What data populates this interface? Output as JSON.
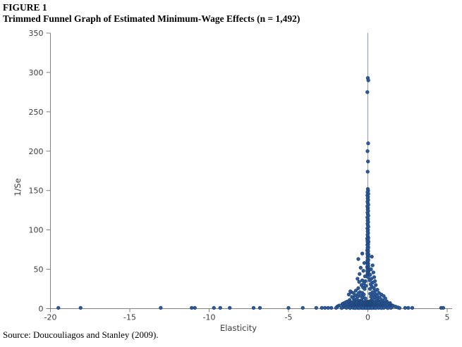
{
  "title": {
    "figure_label": "FIGURE 1",
    "text": "Trimmed Funnel Graph of Estimated Minimum-Wage Effects (n = 1,492)"
  },
  "source": "Source: Doucouliagos and Stanley (2009).",
  "chart_data": {
    "type": "scatter",
    "title": "Trimmed Funnel Graph of Estimated Minimum-Wage Effects (n = 1,492)",
    "n": 1492,
    "xlabel": "Elasticity",
    "ylabel": "1/Se",
    "xlim": [
      -20,
      5
    ],
    "ylim": [
      0,
      350
    ],
    "xticks": [
      -20,
      -15,
      -10,
      -5,
      0,
      5
    ],
    "yticks": [
      0,
      50,
      100,
      150,
      200,
      250,
      300,
      350
    ],
    "grid": false,
    "legend": false,
    "axis_color": "#808080",
    "label_color": "#3b3b3b",
    "reference_line": {
      "x": 0,
      "from": 0,
      "to": 350,
      "color": "#9aa3ad"
    },
    "marker": {
      "shape": "circle",
      "fill": "#2d5a9d",
      "edge": "#1d4273",
      "radius": 2.3
    },
    "points": [
      [
        0,
        293
      ],
      [
        0.03,
        290
      ],
      [
        -0.03,
        275
      ],
      [
        0.02,
        210
      ],
      [
        -0.02,
        200
      ],
      [
        0.01,
        187
      ],
      [
        -0.01,
        174
      ],
      [
        0,
        152
      ],
      [
        0.02,
        150
      ],
      [
        -0.02,
        148
      ],
      [
        0.03,
        146
      ],
      [
        -0.03,
        144
      ],
      [
        0.01,
        142
      ],
      [
        -0.01,
        140
      ],
      [
        0.02,
        138
      ],
      [
        -0.02,
        136
      ],
      [
        0,
        134
      ],
      [
        0.03,
        132
      ],
      [
        -0.03,
        130
      ],
      [
        0.01,
        128
      ],
      [
        -0.01,
        126
      ],
      [
        0.02,
        124
      ],
      [
        -0.02,
        122
      ],
      [
        0,
        120
      ],
      [
        0.03,
        118
      ],
      [
        -0.03,
        116
      ],
      [
        0.01,
        114
      ],
      [
        -0.01,
        112
      ],
      [
        0.02,
        110
      ],
      [
        -0.02,
        108
      ],
      [
        0,
        106
      ],
      [
        0.03,
        104
      ],
      [
        -0.03,
        102
      ],
      [
        0.01,
        100
      ],
      [
        -0.01,
        98
      ],
      [
        0.02,
        96
      ],
      [
        -0.02,
        94
      ],
      [
        0,
        92
      ],
      [
        0.03,
        90
      ],
      [
        -0.04,
        89
      ],
      [
        0.01,
        88
      ],
      [
        -0.02,
        86
      ],
      [
        0.04,
        85
      ],
      [
        -0.01,
        84
      ],
      [
        0.02,
        82
      ],
      [
        -0.03,
        81
      ],
      [
        0,
        80
      ],
      [
        0.03,
        78
      ],
      [
        -0.02,
        77
      ],
      [
        0.01,
        76
      ],
      [
        -0.04,
        74
      ],
      [
        0.02,
        73
      ],
      [
        0,
        72
      ],
      [
        -0.03,
        70
      ],
      [
        0.04,
        69
      ],
      [
        -0.01,
        68
      ],
      [
        0.02,
        66
      ],
      [
        -0.02,
        65
      ],
      [
        0,
        64
      ],
      [
        0.03,
        62
      ],
      [
        -0.03,
        61
      ],
      [
        0.01,
        60
      ],
      [
        -0.02,
        58
      ],
      [
        0.02,
        57
      ],
      [
        0,
        56
      ],
      [
        -0.01,
        55
      ],
      [
        0.03,
        54
      ],
      [
        -0.04,
        53
      ],
      [
        0.01,
        52
      ],
      [
        -0.02,
        51
      ],
      [
        0.02,
        50
      ],
      [
        0,
        49
      ],
      [
        -0.03,
        48
      ],
      [
        0.04,
        47
      ],
      [
        -0.01,
        46
      ],
      [
        0.02,
        45
      ],
      [
        -0.02,
        44
      ],
      [
        0,
        43
      ],
      [
        0.03,
        42
      ],
      [
        -0.03,
        41
      ],
      [
        0.01,
        40
      ],
      [
        -0.6,
        63
      ],
      [
        -0.35,
        70
      ],
      [
        0.25,
        66
      ],
      [
        -0.22,
        58
      ],
      [
        0.3,
        55
      ],
      [
        -0.45,
        52
      ],
      [
        0.2,
        50
      ],
      [
        -0.28,
        48
      ],
      [
        0.35,
        46
      ],
      [
        -0.52,
        44
      ],
      [
        0.15,
        43
      ],
      [
        -0.18,
        41
      ],
      [
        0.4,
        40
      ],
      [
        -0.65,
        38
      ],
      [
        0.22,
        38
      ],
      [
        -0.35,
        36
      ],
      [
        0.12,
        36
      ],
      [
        -0.15,
        35
      ],
      [
        0.45,
        35
      ],
      [
        -0.55,
        34
      ],
      [
        0.3,
        33
      ],
      [
        -0.25,
        32
      ],
      [
        0.18,
        31
      ],
      [
        -0.4,
        30
      ],
      [
        0.5,
        30
      ],
      [
        -0.12,
        29
      ],
      [
        0.25,
        28
      ],
      [
        -0.3,
        27
      ],
      [
        0.38,
        26
      ],
      [
        -0.6,
        26
      ],
      [
        0.14,
        25
      ],
      [
        -0.2,
        25
      ],
      [
        -1.05,
        21
      ],
      [
        -1.1,
        22
      ],
      [
        0.6,
        24
      ],
      [
        -0.75,
        23
      ],
      [
        0.45,
        22
      ],
      [
        -0.5,
        21
      ],
      [
        0.3,
        21
      ],
      [
        -0.9,
        20
      ],
      [
        0.7,
        20
      ],
      [
        -0.35,
        20
      ],
      [
        0.15,
        19
      ],
      [
        -0.6,
        19
      ],
      [
        0.5,
        18
      ],
      [
        -1.2,
        18
      ],
      [
        0.85,
        18
      ],
      [
        -0.25,
        18
      ],
      [
        0.35,
        17
      ],
      [
        -0.8,
        17
      ],
      [
        0.6,
        16
      ],
      [
        -0.45,
        16
      ],
      [
        1,
        16
      ],
      [
        -1,
        15
      ],
      [
        0.2,
        15
      ],
      [
        -0.65,
        15
      ],
      [
        0.75,
        14
      ],
      [
        -0.3,
        14
      ],
      [
        0.45,
        14
      ],
      [
        -0.9,
        13
      ],
      [
        1.1,
        13
      ],
      [
        -0.15,
        13
      ],
      [
        0.55,
        12
      ],
      [
        -0.7,
        12
      ],
      [
        0.3,
        12
      ],
      [
        -1.15,
        11
      ],
      [
        0.9,
        11
      ],
      [
        -0.4,
        11
      ],
      [
        0.65,
        10
      ],
      [
        -0.55,
        10
      ],
      [
        0.18,
        10
      ],
      [
        -0.85,
        10
      ],
      [
        -1.3,
        9
      ],
      [
        -0.9,
        9
      ],
      [
        -0.6,
        9
      ],
      [
        -0.35,
        9
      ],
      [
        -0.15,
        9
      ],
      [
        0,
        9
      ],
      [
        0.2,
        9
      ],
      [
        0.5,
        9
      ],
      [
        0.8,
        9
      ],
      [
        1.2,
        9
      ],
      [
        -1.1,
        8.5
      ],
      [
        -0.75,
        8.5
      ],
      [
        -0.5,
        8.5
      ],
      [
        -0.25,
        8.5
      ],
      [
        -0.05,
        8.5
      ],
      [
        0.12,
        8.5
      ],
      [
        0.35,
        8.5
      ],
      [
        0.65,
        8.5
      ],
      [
        1,
        8.5
      ],
      [
        -1.4,
        8
      ],
      [
        -1,
        8
      ],
      [
        -0.7,
        8
      ],
      [
        -0.45,
        8
      ],
      [
        -0.2,
        8
      ],
      [
        0,
        8
      ],
      [
        0.18,
        8
      ],
      [
        0.4,
        8
      ],
      [
        0.7,
        8
      ],
      [
        1.1,
        8
      ],
      [
        -1.2,
        7.5
      ],
      [
        -0.85,
        7.5
      ],
      [
        -0.55,
        7.5
      ],
      [
        -0.3,
        7.5
      ],
      [
        -0.1,
        7.5
      ],
      [
        0.08,
        7.5
      ],
      [
        0.28,
        7.5
      ],
      [
        0.55,
        7.5
      ],
      [
        0.9,
        7.5
      ],
      [
        -1.5,
        7
      ],
      [
        -1.05,
        7
      ],
      [
        -0.75,
        7
      ],
      [
        -0.5,
        7
      ],
      [
        -0.25,
        7
      ],
      [
        -0.05,
        7
      ],
      [
        0.15,
        7
      ],
      [
        0.38,
        7
      ],
      [
        0.68,
        7
      ],
      [
        1.05,
        7
      ],
      [
        1.4,
        7
      ],
      [
        -1.25,
        6.5
      ],
      [
        -0.9,
        6.5
      ],
      [
        -0.6,
        6.5
      ],
      [
        -0.35,
        6.5
      ],
      [
        -0.12,
        6.5
      ],
      [
        0.05,
        6.5
      ],
      [
        0.25,
        6.5
      ],
      [
        0.5,
        6.5
      ],
      [
        0.85,
        6.5
      ],
      [
        1.25,
        6.5
      ],
      [
        -1.6,
        6
      ],
      [
        -1.1,
        6
      ],
      [
        -0.8,
        6
      ],
      [
        -0.52,
        6
      ],
      [
        -0.28,
        6
      ],
      [
        -0.08,
        6
      ],
      [
        0.1,
        6
      ],
      [
        0.3,
        6
      ],
      [
        0.58,
        6
      ],
      [
        0.95,
        6
      ],
      [
        1.35,
        6
      ],
      [
        -1.35,
        5.5
      ],
      [
        -0.95,
        5.5
      ],
      [
        -0.65,
        5.5
      ],
      [
        -0.4,
        5.5
      ],
      [
        -0.18,
        5.5
      ],
      [
        0,
        5.5
      ],
      [
        0.2,
        5.5
      ],
      [
        0.42,
        5.5
      ],
      [
        0.75,
        5.5
      ],
      [
        1.15,
        5.5
      ],
      [
        -1.55,
        5
      ],
      [
        -1.15,
        5
      ],
      [
        -0.82,
        5
      ],
      [
        -0.55,
        5
      ],
      [
        -0.3,
        5
      ],
      [
        -0.1,
        5
      ],
      [
        0.08,
        5
      ],
      [
        0.28,
        5
      ],
      [
        0.52,
        5
      ],
      [
        0.85,
        5
      ],
      [
        1.3,
        5
      ],
      [
        -1.45,
        4.5
      ],
      [
        -1,
        4.5
      ],
      [
        -0.7,
        4.5
      ],
      [
        -0.45,
        4.5
      ],
      [
        -0.22,
        4.5
      ],
      [
        -0.04,
        4.5
      ],
      [
        0.15,
        4.5
      ],
      [
        0.35,
        4.5
      ],
      [
        0.62,
        4.5
      ],
      [
        1,
        4.5
      ],
      [
        1.45,
        4.5
      ],
      [
        -1.8,
        4
      ],
      [
        -1.2,
        4
      ],
      [
        -0.85,
        4
      ],
      [
        -0.58,
        4
      ],
      [
        -0.32,
        4
      ],
      [
        -0.12,
        4
      ],
      [
        0.05,
        4
      ],
      [
        0.25,
        4
      ],
      [
        0.48,
        4
      ],
      [
        0.8,
        4
      ],
      [
        1.2,
        4
      ],
      [
        1.55,
        4
      ],
      [
        -1.5,
        3.5
      ],
      [
        -1.05,
        3.5
      ],
      [
        -0.72,
        3.5
      ],
      [
        -0.48,
        3.5
      ],
      [
        -0.25,
        3.5
      ],
      [
        -0.06,
        3.5
      ],
      [
        0.12,
        3.5
      ],
      [
        0.32,
        3.5
      ],
      [
        0.58,
        3.5
      ],
      [
        0.95,
        3.5
      ],
      [
        1.4,
        3.5
      ],
      [
        -1.9,
        3
      ],
      [
        -1.25,
        3
      ],
      [
        -0.88,
        3
      ],
      [
        -0.6,
        3
      ],
      [
        -0.35,
        3
      ],
      [
        -0.15,
        3
      ],
      [
        0.02,
        3
      ],
      [
        0.22,
        3
      ],
      [
        0.45,
        3
      ],
      [
        0.75,
        3
      ],
      [
        1.1,
        3
      ],
      [
        1.5,
        3
      ],
      [
        -1.55,
        2.5
      ],
      [
        -1.08,
        2.5
      ],
      [
        -0.75,
        2.5
      ],
      [
        -0.5,
        2.5
      ],
      [
        -0.28,
        2.5
      ],
      [
        -0.08,
        2.5
      ],
      [
        0.1,
        2.5
      ],
      [
        0.3,
        2.5
      ],
      [
        0.55,
        2.5
      ],
      [
        0.9,
        2.5
      ],
      [
        1.35,
        2.5
      ],
      [
        -1.95,
        2
      ],
      [
        -1.3,
        2
      ],
      [
        -0.9,
        2
      ],
      [
        -0.62,
        2
      ],
      [
        -0.38,
        2
      ],
      [
        -0.18,
        2
      ],
      [
        0,
        2
      ],
      [
        0.18,
        2
      ],
      [
        0.4,
        2
      ],
      [
        0.7,
        2
      ],
      [
        1.05,
        2
      ],
      [
        1.5,
        2
      ],
      [
        -1.6,
        1.5
      ],
      [
        -1.1,
        1.5
      ],
      [
        -0.78,
        1.5
      ],
      [
        -0.52,
        1.5
      ],
      [
        -0.3,
        1.5
      ],
      [
        -0.1,
        1.5
      ],
      [
        0.08,
        1.5
      ],
      [
        0.28,
        1.5
      ],
      [
        0.52,
        1.5
      ],
      [
        0.88,
        1.5
      ],
      [
        1.3,
        1.5
      ],
      [
        -2,
        1
      ],
      [
        -1.35,
        1
      ],
      [
        -0.92,
        1
      ],
      [
        -0.65,
        1
      ],
      [
        -0.4,
        1
      ],
      [
        -0.2,
        1
      ],
      [
        -0.02,
        1
      ],
      [
        0.15,
        1
      ],
      [
        0.38,
        1
      ],
      [
        0.68,
        1
      ],
      [
        1,
        1
      ],
      [
        1.45,
        1
      ],
      [
        -1.65,
        0.8
      ],
      [
        -1.12,
        0.8
      ],
      [
        -0.8,
        0.8
      ],
      [
        -0.55,
        0.8
      ],
      [
        -0.32,
        0.8
      ],
      [
        -0.12,
        0.8
      ],
      [
        0.06,
        0.8
      ],
      [
        0.25,
        0.8
      ],
      [
        0.5,
        0.8
      ],
      [
        0.85,
        0.8
      ],
      [
        1.25,
        0.8
      ],
      [
        1.6,
        3.5
      ],
      [
        1.75,
        2.5
      ],
      [
        1.9,
        1.5
      ],
      [
        2,
        0.8
      ],
      [
        -19.5,
        1
      ],
      [
        -18.1,
        1
      ],
      [
        -13.05,
        1
      ],
      [
        -11.1,
        1
      ],
      [
        -10.9,
        1
      ],
      [
        -9.7,
        1
      ],
      [
        -9.3,
        1
      ],
      [
        -8.7,
        1
      ],
      [
        -7.2,
        1
      ],
      [
        -6.8,
        1
      ],
      [
        -5,
        1
      ],
      [
        -4.1,
        1
      ],
      [
        -3.25,
        1
      ],
      [
        -2.9,
        1
      ],
      [
        -2.7,
        1
      ],
      [
        -2.5,
        1
      ],
      [
        -2.3,
        1
      ],
      [
        2.35,
        1
      ],
      [
        2.55,
        1
      ],
      [
        2.8,
        1
      ],
      [
        4.62,
        1
      ],
      [
        4.75,
        1
      ]
    ]
  }
}
